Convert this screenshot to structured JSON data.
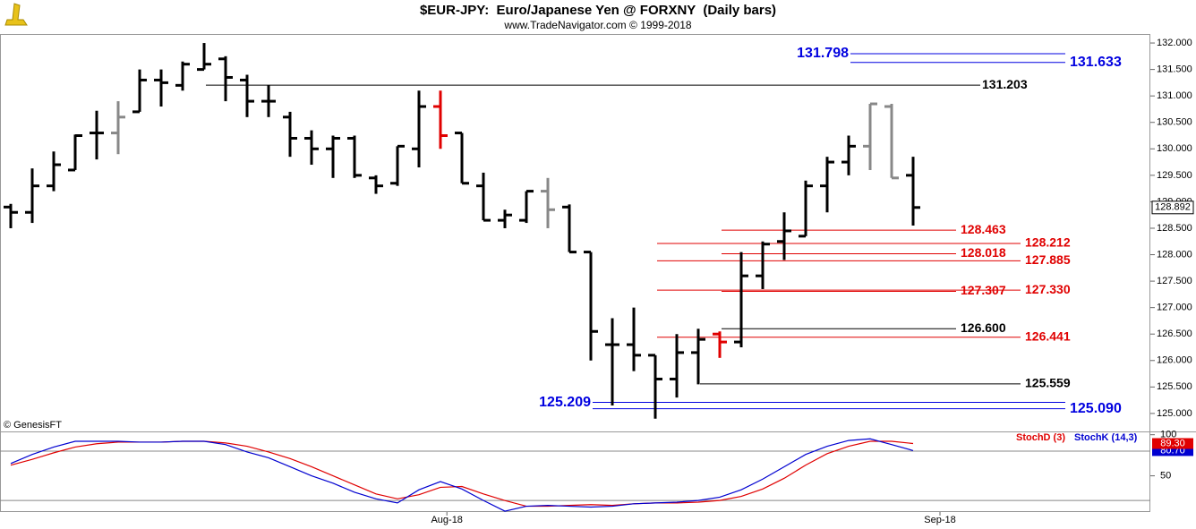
{
  "chart_data": [
    {
      "type": "ohlc",
      "title": "$EUR-JPY:  Euro/Japanese Yen @ FORXNY  (Daily bars)",
      "subtitle": "www.TradeNavigator.com © 1999-2018",
      "source": "© GenesisFT",
      "open": [
        128.9,
        128.8,
        129.3,
        129.6,
        130.3,
        130.3,
        130.7,
        131.3,
        131.2,
        131.5,
        131.7,
        131.3,
        130.9,
        130.6,
        130.2,
        130.0,
        130.2,
        129.45,
        129.35,
        130.0,
        130.8,
        130.3,
        129.3,
        128.65,
        128.65,
        129.2,
        128.9,
        128.05,
        126.3,
        126.3,
        126.1,
        125.65,
        126.15,
        126.5,
        126.35,
        127.6,
        128.25,
        128.35,
        129.3,
        129.75,
        130.05,
        130.8,
        129.5
      ],
      "high": [
        128.96,
        129.63,
        129.95,
        130.27,
        130.72,
        130.9,
        131.5,
        131.5,
        131.65,
        132.0,
        131.75,
        131.4,
        131.2,
        130.7,
        130.35,
        130.25,
        130.25,
        129.5,
        130.05,
        131.1,
        131.1,
        130.3,
        129.55,
        128.85,
        129.2,
        129.45,
        128.95,
        128.05,
        126.8,
        127.0,
        126.1,
        126.5,
        126.6,
        126.55,
        128.05,
        128.25,
        128.8,
        129.4,
        129.85,
        130.25,
        130.85,
        130.85,
        129.85
      ],
      "low": [
        128.5,
        128.6,
        129.2,
        129.6,
        129.8,
        129.9,
        130.7,
        130.8,
        131.1,
        131.5,
        130.9,
        130.6,
        130.6,
        129.85,
        129.7,
        129.45,
        129.45,
        129.15,
        129.3,
        129.65,
        130.0,
        129.35,
        128.65,
        128.5,
        128.6,
        128.5,
        128.05,
        126.0,
        125.15,
        125.8,
        124.9,
        125.3,
        125.55,
        126.05,
        126.25,
        127.35,
        127.9,
        128.35,
        128.8,
        129.5,
        129.6,
        129.45,
        128.55
      ],
      "close": [
        128.8,
        129.3,
        129.7,
        130.25,
        130.3,
        130.6,
        131.3,
        131.25,
        131.6,
        131.6,
        131.35,
        130.9,
        130.9,
        130.2,
        130.0,
        130.2,
        129.5,
        129.3,
        130.05,
        130.8,
        130.25,
        129.35,
        128.65,
        128.75,
        129.2,
        128.85,
        128.05,
        126.55,
        126.3,
        126.1,
        125.65,
        126.15,
        126.4,
        126.35,
        127.6,
        128.2,
        128.45,
        129.3,
        129.75,
        130.05,
        130.85,
        129.45,
        128.892
      ],
      "bar_colors": [
        "#000",
        "#000",
        "#000",
        "#000",
        "#000",
        "#888",
        "#000",
        "#000",
        "#000",
        "#000",
        "#000",
        "#000",
        "#000",
        "#000",
        "#000",
        "#000",
        "#000",
        "#000",
        "#000",
        "#000",
        "#e00000",
        "#000",
        "#000",
        "#000",
        "#000",
        "#888",
        "#000",
        "#000",
        "#000",
        "#000",
        "#000",
        "#000",
        "#000",
        "#e00000",
        "#000",
        "#000",
        "#000",
        "#000",
        "#000",
        "#000",
        "#888",
        "#888",
        "#000"
      ],
      "ylim": [
        124.66,
        132.17
      ],
      "yticks": [
        {
          "value": 125,
          "label": "125.000"
        },
        {
          "value": 125.5,
          "label": "125.500"
        },
        {
          "value": 126,
          "label": "126.000"
        },
        {
          "value": 126.5,
          "label": "126.500"
        },
        {
          "value": 127,
          "label": "127.000"
        },
        {
          "value": 127.5,
          "label": "127.500"
        },
        {
          "value": 128,
          "label": "128.000"
        },
        {
          "value": 128.5,
          "label": "128.500"
        },
        {
          "value": 129,
          "label": "129.000"
        },
        {
          "value": 129.5,
          "label": "129.500"
        },
        {
          "value": 130,
          "label": "130.000"
        },
        {
          "value": 130.5,
          "label": "130.500"
        },
        {
          "value": 131,
          "label": "131.000"
        },
        {
          "value": 131.5,
          "label": "131.500"
        },
        {
          "value": 132,
          "label": "132.000"
        }
      ],
      "levels": [
        {
          "value": 131.798,
          "label": "131.798",
          "color": "#0000e0"
        },
        {
          "value": 131.633,
          "label": "131.633",
          "color": "#0000e0"
        },
        {
          "value": 131.203,
          "label": "131.203",
          "color": "#000000"
        },
        {
          "value": 128.463,
          "label": "128.463",
          "color": "#e00000"
        },
        {
          "value": 128.212,
          "label": "128.212",
          "color": "#e00000"
        },
        {
          "value": 128.018,
          "label": "128.018",
          "color": "#e00000"
        },
        {
          "value": 127.885,
          "label": "127.885",
          "color": "#e00000"
        },
        {
          "value": 127.307,
          "label": "127.307",
          "color": "#e00000"
        },
        {
          "value": 127.33,
          "label": "127.330",
          "color": "#e00000"
        },
        {
          "value": 126.6,
          "label": "126.600",
          "color": "#000000"
        },
        {
          "value": 126.441,
          "label": "126.441",
          "color": "#e00000"
        },
        {
          "value": 125.559,
          "label": "125.559",
          "color": "#000000"
        },
        {
          "value": 125.209,
          "label": "125.209",
          "color": "#0000e0"
        },
        {
          "value": 125.09,
          "label": "125.090",
          "color": "#0000e0"
        }
      ]
    },
    {
      "type": "line",
      "series": [
        {
          "name": "StochD (3)",
          "color": "#e00000",
          "values": [
            63,
            70,
            78,
            85,
            89,
            91,
            91,
            91,
            92,
            92,
            90,
            86,
            79,
            71,
            61,
            50,
            39,
            28,
            22,
            27,
            36,
            37,
            28,
            20,
            13,
            13,
            14,
            15,
            14,
            16,
            17,
            17,
            18,
            20,
            25,
            34,
            47,
            63,
            77,
            86,
            92,
            92,
            89.3
          ],
          "value_labels": [
            null,
            null,
            null,
            null,
            null,
            null,
            null,
            null,
            null,
            null,
            null,
            null,
            null,
            null,
            null,
            null,
            null,
            null,
            null,
            null,
            null,
            null,
            null,
            null,
            null,
            null,
            null,
            null,
            null,
            null,
            null,
            null,
            null,
            null,
            null,
            null,
            null,
            null,
            null,
            null,
            null,
            null,
            "89.30"
          ]
        },
        {
          "name": "StochK (14,3)",
          "color": "#0000d0",
          "values": [
            65,
            76,
            85,
            92,
            92,
            92,
            91,
            91,
            92,
            92,
            88,
            79,
            72,
            61,
            50,
            41,
            30,
            22,
            17,
            33,
            43,
            34,
            20,
            7,
            13,
            14,
            13,
            12,
            13,
            16,
            17,
            18,
            20,
            24,
            33,
            46,
            61,
            76,
            86,
            93,
            95,
            88,
            80.7
          ],
          "value_labels": [
            null,
            null,
            null,
            null,
            null,
            null,
            null,
            null,
            null,
            null,
            null,
            null,
            null,
            null,
            null,
            null,
            null,
            null,
            null,
            null,
            null,
            null,
            null,
            null,
            null,
            null,
            null,
            null,
            null,
            null,
            null,
            null,
            null,
            null,
            null,
            null,
            null,
            null,
            null,
            null,
            null,
            null,
            "80.70"
          ]
        }
      ],
      "ylim": [
        6,
        104
      ],
      "yticks": [
        100,
        50
      ],
      "hlines": [
        80,
        20
      ],
      "xticks": [
        {
          "value": 20.3,
          "label": "Aug-18"
        },
        {
          "value": 43.25,
          "label": "Sep-18"
        }
      ]
    }
  ]
}
